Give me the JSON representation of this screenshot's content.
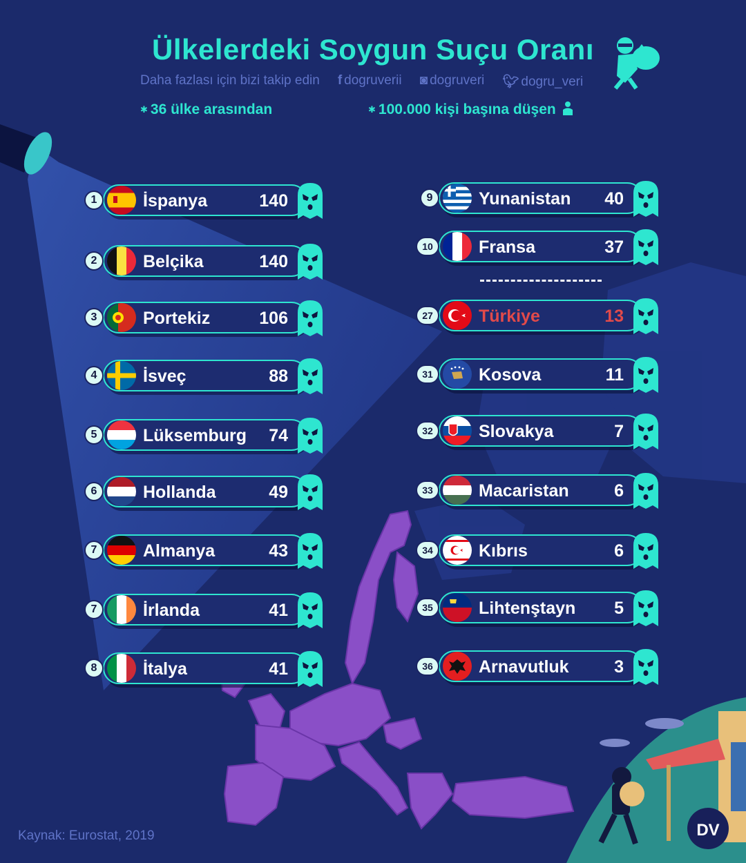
{
  "header": {
    "title": "Ülkelerdeki Soygun Suçu Oranı",
    "follow_text": "Daha fazlası için bizi takip edin",
    "facebook": "dogruverii",
    "instagram": "dogruveri",
    "twitter": "dogru_veri",
    "note_left": "36 ülke arasından",
    "note_right": "100.000 kişi başına düşen"
  },
  "source": "Kaynak: Eurostat, 2019",
  "logo": "DV",
  "colors": {
    "background": "#1b2a6b",
    "accent": "#2ee6d0",
    "highlight": "#e24a4a",
    "map": "#8a4fc7"
  },
  "chart_data": {
    "type": "bar",
    "title": "Ülkelerdeki Soygun Suçu Oranı",
    "unit_note": "100.000 kişi başına düşen",
    "highlight": "Türkiye",
    "rows": [
      {
        "rank": "1",
        "country": "İspanya",
        "value": 140,
        "flag": "spain"
      },
      {
        "rank": "2",
        "country": "Belçika",
        "value": 140,
        "flag": "belgium"
      },
      {
        "rank": "3",
        "country": "Portekiz",
        "value": 106,
        "flag": "portugal"
      },
      {
        "rank": "4",
        "country": "İsveç",
        "value": 88,
        "flag": "sweden"
      },
      {
        "rank": "5",
        "country": "Lüksemburg",
        "value": 74,
        "flag": "luxembourg"
      },
      {
        "rank": "6",
        "country": "Hollanda",
        "value": 49,
        "flag": "netherlands"
      },
      {
        "rank": "7",
        "country": "Almanya",
        "value": 43,
        "flag": "germany"
      },
      {
        "rank": "7",
        "country": "İrlanda",
        "value": 41,
        "flag": "ireland"
      },
      {
        "rank": "8",
        "country": "İtalya",
        "value": 41,
        "flag": "italy"
      },
      {
        "rank": "9",
        "country": "Yunanistan",
        "value": 40,
        "flag": "greece"
      },
      {
        "rank": "10",
        "country": "Fransa",
        "value": 37,
        "flag": "france"
      },
      {
        "rank": "27",
        "country": "Türkiye",
        "value": 13,
        "flag": "turkey"
      },
      {
        "rank": "31",
        "country": "Kosova",
        "value": 11,
        "flag": "kosovo"
      },
      {
        "rank": "32",
        "country": "Slovakya",
        "value": 7,
        "flag": "slovakia"
      },
      {
        "rank": "33",
        "country": "Macaristan",
        "value": 6,
        "flag": "hungary"
      },
      {
        "rank": "34",
        "country": "Kıbrıs",
        "value": 6,
        "flag": "cyprus"
      },
      {
        "rank": "35",
        "country": "Lihtenştayn",
        "value": 5,
        "flag": "liechtenstein"
      },
      {
        "rank": "36",
        "country": "Arnavutluk",
        "value": 3,
        "flag": "albania"
      }
    ]
  }
}
